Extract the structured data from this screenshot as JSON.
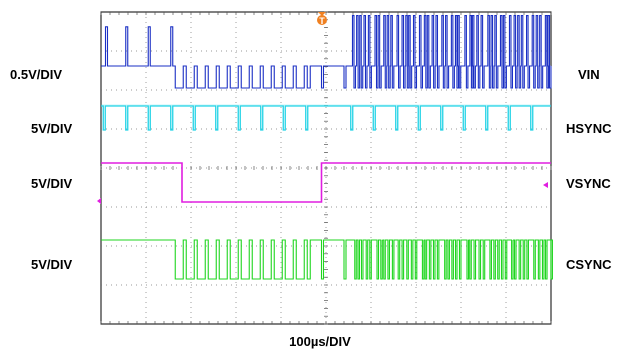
{
  "chart_data": {
    "type": "line",
    "xlabel": "100µs/DIV",
    "grid": true,
    "grid_divisions": {
      "x": 10,
      "y": 8
    },
    "trigger_marker": "T",
    "channels": [
      {
        "name": "VIN",
        "scale": "0.5V/DIV",
        "color": "#1a2fc4"
      },
      {
        "name": "HSYNC",
        "scale": "5V/DIV",
        "color": "#22d3e6"
      },
      {
        "name": "VSYNC",
        "scale": "5V/DIV",
        "color": "#e01ee0"
      },
      {
        "name": "CSYNC",
        "scale": "5V/DIV",
        "color": "#1fd61f"
      }
    ],
    "x_unit_divisions": [
      0,
      10
    ],
    "vsync_low_interval_div": [
      1.8,
      4.9
    ],
    "hsync_pulse_positions_div": [
      0.05,
      0.55,
      1.05,
      1.55,
      2.05,
      2.55,
      3.05,
      3.55,
      4.05,
      4.55,
      5.55,
      6.05,
      6.55,
      7.05,
      7.55,
      8.05,
      8.55,
      9.05,
      9.55
    ]
  }
}
